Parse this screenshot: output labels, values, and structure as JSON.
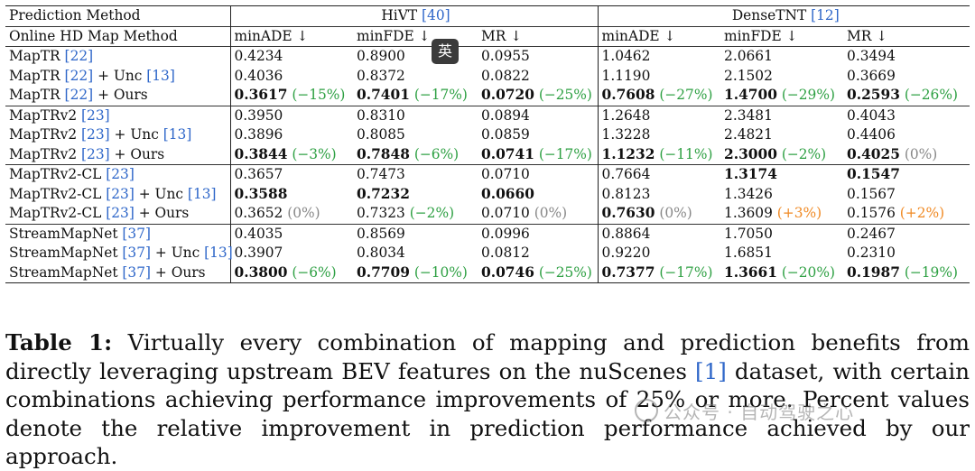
{
  "table": {
    "header1": {
      "c0": "Prediction Method",
      "g1": "HiVT",
      "g1cite": "40",
      "g2": "DenseTNT",
      "g2cite": "12"
    },
    "header2": [
      "Online HD Map Method",
      "minADE ↓",
      "minFDE ↓",
      "MR ↓",
      "minADE ↓",
      "minFDE ↓",
      "MR ↓"
    ],
    "groups": [
      {
        "rows": [
          {
            "method": [
              {
                "t": "MapTR "
              },
              {
                "c": "22"
              }
            ],
            "cells": [
              {
                "v": "0.4234"
              },
              {
                "v": "0.8900"
              },
              {
                "v": "0.0955"
              },
              {
                "v": "1.0462"
              },
              {
                "v": "2.0661"
              },
              {
                "v": "0.3494"
              }
            ]
          },
          {
            "method": [
              {
                "t": "MapTR "
              },
              {
                "c": "22"
              },
              {
                "t": " + Unc "
              },
              {
                "c": "13"
              }
            ],
            "cells": [
              {
                "v": "0.4036"
              },
              {
                "v": "0.8372"
              },
              {
                "v": "0.0822"
              },
              {
                "v": "1.1190"
              },
              {
                "v": "2.1502"
              },
              {
                "v": "0.3669"
              }
            ]
          },
          {
            "method": [
              {
                "t": "MapTR "
              },
              {
                "c": "22"
              },
              {
                "t": " + Ours"
              }
            ],
            "cells": [
              {
                "v": "0.3617",
                "b": true,
                "d": "(−15%)",
                "k": "up"
              },
              {
                "v": "0.7401",
                "b": true,
                "d": "(−17%)",
                "k": "up"
              },
              {
                "v": "0.0720",
                "b": true,
                "d": "(−25%)",
                "k": "up"
              },
              {
                "v": "0.7608",
                "b": true,
                "d": "(−27%)",
                "k": "up"
              },
              {
                "v": "1.4700",
                "b": true,
                "d": "(−29%)",
                "k": "up"
              },
              {
                "v": "0.2593",
                "b": true,
                "d": "(−26%)",
                "k": "up"
              }
            ]
          }
        ]
      },
      {
        "rows": [
          {
            "method": [
              {
                "t": "MapTRv2 "
              },
              {
                "c": "23"
              }
            ],
            "cells": [
              {
                "v": "0.3950"
              },
              {
                "v": "0.8310"
              },
              {
                "v": "0.0894"
              },
              {
                "v": "1.2648"
              },
              {
                "v": "2.3481"
              },
              {
                "v": "0.4043"
              }
            ]
          },
          {
            "method": [
              {
                "t": "MapTRv2 "
              },
              {
                "c": "23"
              },
              {
                "t": " + Unc "
              },
              {
                "c": "13"
              }
            ],
            "cells": [
              {
                "v": "0.3896"
              },
              {
                "v": "0.8085"
              },
              {
                "v": "0.0859"
              },
              {
                "v": "1.3228"
              },
              {
                "v": "2.4821"
              },
              {
                "v": "0.4406"
              }
            ]
          },
          {
            "method": [
              {
                "t": "MapTRv2 "
              },
              {
                "c": "23"
              },
              {
                "t": " + Ours"
              }
            ],
            "cells": [
              {
                "v": "0.3844",
                "b": true,
                "d": "(−3%)",
                "k": "up"
              },
              {
                "v": "0.7848",
                "b": true,
                "d": "(−6%)",
                "k": "up"
              },
              {
                "v": "0.0741",
                "b": true,
                "d": "(−17%)",
                "k": "up"
              },
              {
                "v": "1.1232",
                "b": true,
                "d": "(−11%)",
                "k": "up"
              },
              {
                "v": "2.3000",
                "b": true,
                "d": "(−2%)",
                "k": "up"
              },
              {
                "v": "0.4025",
                "b": true,
                "d": "(0%)",
                "k": "zero"
              }
            ]
          }
        ]
      },
      {
        "rows": [
          {
            "method": [
              {
                "t": "MapTRv2-CL "
              },
              {
                "c": "23"
              }
            ],
            "cells": [
              {
                "v": "0.3657"
              },
              {
                "v": "0.7473"
              },
              {
                "v": "0.0710"
              },
              {
                "v": "0.7664"
              },
              {
                "v": "1.3174",
                "b": true
              },
              {
                "v": "0.1547",
                "b": true
              }
            ]
          },
          {
            "method": [
              {
                "t": "MapTRv2-CL "
              },
              {
                "c": "23"
              },
              {
                "t": " + Unc "
              },
              {
                "c": "13"
              }
            ],
            "cells": [
              {
                "v": "0.3588",
                "b": true
              },
              {
                "v": "0.7232",
                "b": true
              },
              {
                "v": "0.0660",
                "b": true
              },
              {
                "v": "0.8123"
              },
              {
                "v": "1.3426"
              },
              {
                "v": "0.1567"
              }
            ]
          },
          {
            "method": [
              {
                "t": "MapTRv2-CL "
              },
              {
                "c": "23"
              },
              {
                "t": " + Ours"
              }
            ],
            "cells": [
              {
                "v": "0.3652",
                "d": "(0%)",
                "k": "zero"
              },
              {
                "v": "0.7323",
                "d": "(−2%)",
                "k": "up"
              },
              {
                "v": "0.0710",
                "d": "(0%)",
                "k": "zero"
              },
              {
                "v": "0.7630",
                "b": true,
                "d": "(0%)",
                "k": "zero"
              },
              {
                "v": "1.3609",
                "d": "(+3%)",
                "k": "dn"
              },
              {
                "v": "0.1576",
                "d": "(+2%)",
                "k": "dn"
              }
            ]
          }
        ]
      },
      {
        "rows": [
          {
            "method": [
              {
                "t": "StreamMapNet "
              },
              {
                "c": "37"
              }
            ],
            "cells": [
              {
                "v": "0.4035"
              },
              {
                "v": "0.8569"
              },
              {
                "v": "0.0996"
              },
              {
                "v": "0.8864"
              },
              {
                "v": "1.7050"
              },
              {
                "v": "0.2467"
              }
            ]
          },
          {
            "method": [
              {
                "t": "StreamMapNet "
              },
              {
                "c": "37"
              },
              {
                "t": " + Unc "
              },
              {
                "c": "13"
              }
            ],
            "cells": [
              {
                "v": "0.3907"
              },
              {
                "v": "0.8034"
              },
              {
                "v": "0.0812"
              },
              {
                "v": "0.9220"
              },
              {
                "v": "1.6851"
              },
              {
                "v": "0.2310"
              }
            ]
          },
          {
            "method": [
              {
                "t": "StreamMapNet "
              },
              {
                "c": "37"
              },
              {
                "t": " + Ours"
              }
            ],
            "cells": [
              {
                "v": "0.3800",
                "b": true,
                "d": "(−6%)",
                "k": "up"
              },
              {
                "v": "0.7709",
                "b": true,
                "d": "(−10%)",
                "k": "up"
              },
              {
                "v": "0.0746",
                "b": true,
                "d": "(−25%)",
                "k": "up"
              },
              {
                "v": "0.7377",
                "b": true,
                "d": "(−17%)",
                "k": "up"
              },
              {
                "v": "1.3661",
                "b": true,
                "d": "(−20%)",
                "k": "up"
              },
              {
                "v": "0.1987",
                "b": true,
                "d": "(−19%)",
                "k": "up"
              }
            ]
          }
        ]
      }
    ]
  },
  "caption": {
    "label": "Table 1:",
    "text1": " Virtually every combination of mapping and prediction benefits from directly leveraging upstream BEV features on the nuScenes ",
    "cite": "1",
    "text2": " dataset, with certain combinations achieving performance improvements of 25% or more. Percent values denote the relative improvement in prediction performance achieved by our approach."
  },
  "overlay": {
    "ime_badge": "英",
    "watermark": "公众号 · 自动驾驶之心"
  },
  "colors": {
    "cite": "#2f67c9",
    "improvement": "#2ea043",
    "regression": "#f08a24",
    "neutral": "#888888"
  }
}
